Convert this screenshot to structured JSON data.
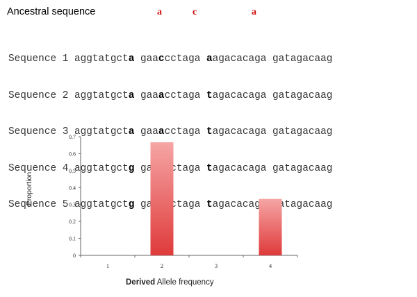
{
  "title": "Ancestral sequence",
  "ancestral_markers": [
    "a",
    "c",
    "a"
  ],
  "sequences": [
    {
      "label": "Sequence 1",
      "parts": [
        "aggtatgct",
        "a",
        " gaa",
        "c",
        "cctaga ",
        "a",
        "agacacaga gatagacaag"
      ]
    },
    {
      "label": "Sequence 2",
      "parts": [
        "aggtatgct",
        "a",
        " gaa",
        "a",
        "cctaga ",
        "t",
        "agacacaga gatagacaag"
      ]
    },
    {
      "label": "Sequence 3",
      "parts": [
        "aggtatgct",
        "a",
        " gaa",
        "a",
        "cctaga ",
        "t",
        "agacacaga gatagacaag"
      ]
    },
    {
      "label": "Sequence 4",
      "parts": [
        "aggtatgct",
        "g",
        " gaa",
        "c",
        "cctaga ",
        "t",
        "agacacaga gatagacaag"
      ]
    },
    {
      "label": "Sequence 5",
      "parts": [
        "aggtatgct",
        "g",
        " gaa",
        "c",
        "cctaga ",
        "t",
        "agacacaga gatagacaag"
      ]
    }
  ],
  "colors": {
    "ancestral_marker": "#d01010",
    "bar_top": "#f6a5a5",
    "bar_bottom": "#df3a3a"
  },
  "chart_data": {
    "type": "bar",
    "categories": [
      "1",
      "2",
      "3",
      "4"
    ],
    "values": [
      0,
      0.667,
      0,
      0.333
    ],
    "ylim": [
      0,
      0.7
    ],
    "yticks": [
      "0",
      "0.1",
      "0.2",
      "0.3",
      "0.4",
      "0.5",
      "0.6",
      "0.7"
    ],
    "ylabel": "Proportion",
    "xlabel_bold": "Derived",
    "xlabel_rest": " Allele frequency",
    "grid": false
  }
}
